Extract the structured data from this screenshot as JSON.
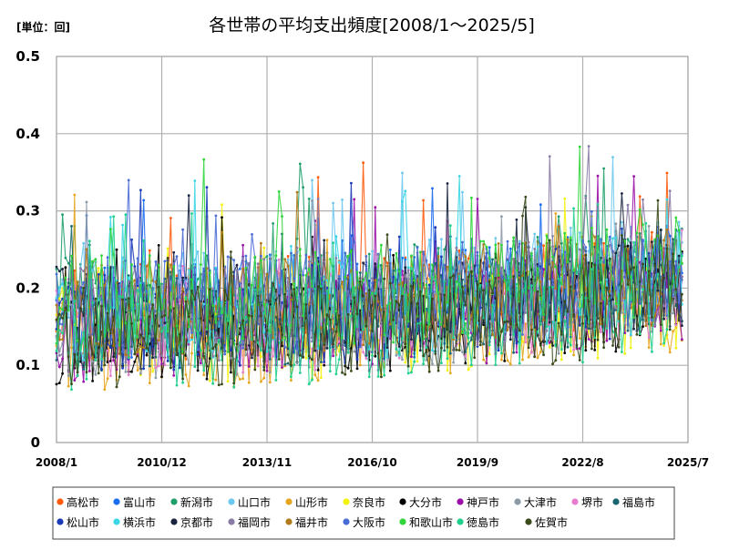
{
  "chart_data": {
    "type": "line",
    "title": "各世帯の平均支出頻度[2008/1～2025/5]",
    "unit_label": "[単位：回]",
    "xlabel": "",
    "ylabel": "",
    "x_start": "2008/1",
    "x_end": "2025/5",
    "x_axis_range": [
      "2008/1",
      "2025/7"
    ],
    "x_ticks": [
      "2008/1",
      "2010/12",
      "2013/11",
      "2016/10",
      "2019/9",
      "2022/8",
      "2025/7"
    ],
    "ylim": [
      0,
      0.5
    ],
    "y_ticks": [
      "0",
      "0.1",
      "0.2",
      "0.3",
      "0.4",
      "0.5"
    ],
    "grid": true,
    "legend_position": "bottom",
    "note": "",
    "series": [
      {
        "name": "高松市",
        "color": "#ff5a0a"
      },
      {
        "name": "富山市",
        "color": "#1a6cf0"
      },
      {
        "name": "新潟市",
        "color": "#1f9e6b"
      },
      {
        "name": "山口市",
        "color": "#6cc8f0"
      },
      {
        "name": "山形市",
        "color": "#e6a51f"
      },
      {
        "name": "奈良市",
        "color": "#f2f20f"
      },
      {
        "name": "大分市",
        "color": "#000000"
      },
      {
        "name": "神戸市",
        "color": "#9a0fa8"
      },
      {
        "name": "大津市",
        "color": "#8c99a6"
      },
      {
        "name": "堺市",
        "color": "#e67ed0"
      },
      {
        "name": "福島市",
        "color": "#1a6670"
      },
      {
        "name": "松山市",
        "color": "#1a3ab8"
      },
      {
        "name": "横浜市",
        "color": "#3ad6e6"
      },
      {
        "name": "京都市",
        "color": "#1a2440"
      },
      {
        "name": "福岡市",
        "color": "#8a7aa6"
      },
      {
        "name": "福井市",
        "color": "#b07a1a"
      },
      {
        "name": "大阪市",
        "color": "#4a6cd6"
      },
      {
        "name": "和歌山市",
        "color": "#2fd63a"
      },
      {
        "name": "徳島市",
        "color": "#1fcf8c"
      },
      {
        "name": "佐賀市",
        "color": "#3a4a1a"
      }
    ]
  }
}
